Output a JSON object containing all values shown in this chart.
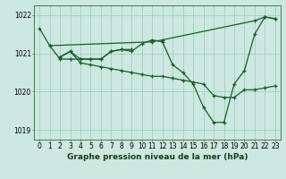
{
  "background_color": "#cce8e0",
  "grid_color": "#99ccbb",
  "line_color": "#1a5c2a",
  "series": [
    {
      "x": [
        0,
        1,
        11,
        12,
        21,
        22,
        23
      ],
      "y": [
        1021.65,
        1021.2,
        1021.3,
        1021.35,
        1021.85,
        1021.95,
        1021.9
      ]
    },
    {
      "x": [
        1,
        2,
        3,
        4,
        5,
        6,
        7,
        8,
        9
      ],
      "y": [
        1021.2,
        1020.85,
        1020.85,
        1020.85,
        1020.85,
        1020.85,
        1021.05,
        1021.1,
        1021.1
      ]
    },
    {
      "x": [
        2,
        3,
        4,
        5,
        6,
        7,
        8,
        9,
        10,
        11,
        12,
        13,
        14,
        15,
        16,
        17,
        18,
        19,
        20,
        21,
        22,
        23
      ],
      "y": [
        1020.9,
        1021.05,
        1020.85,
        1020.85,
        1020.85,
        1021.05,
        1021.1,
        1021.05,
        1021.25,
        1021.35,
        1021.3,
        1020.7,
        1020.5,
        1020.2,
        1019.6,
        1019.2,
        1019.2,
        1020.2,
        1020.55,
        1021.5,
        1021.95,
        1021.9
      ]
    },
    {
      "x": [
        2,
        3,
        4,
        5,
        6,
        7,
        8,
        9,
        10,
        11,
        12,
        13,
        14,
        15,
        16,
        17,
        18,
        19,
        20,
        21,
        22,
        23
      ],
      "y": [
        1020.9,
        1021.05,
        1020.75,
        1020.7,
        1020.65,
        1020.6,
        1020.55,
        1020.5,
        1020.45,
        1020.4,
        1020.4,
        1020.35,
        1020.3,
        1020.25,
        1020.2,
        1019.9,
        1019.85,
        1019.85,
        1020.05,
        1020.05,
        1020.1,
        1020.15
      ]
    }
  ],
  "ylim": [
    1018.75,
    1022.25
  ],
  "yticks": [
    1019,
    1020,
    1021,
    1022
  ],
  "xticks": [
    0,
    1,
    2,
    3,
    4,
    5,
    6,
    7,
    8,
    9,
    10,
    11,
    12,
    13,
    14,
    15,
    16,
    17,
    18,
    19,
    20,
    21,
    22,
    23
  ],
  "xlabel": "Graphe pression niveau de la mer (hPa)",
  "tick_fontsize": 5.5,
  "xlabel_fontsize": 6.5
}
